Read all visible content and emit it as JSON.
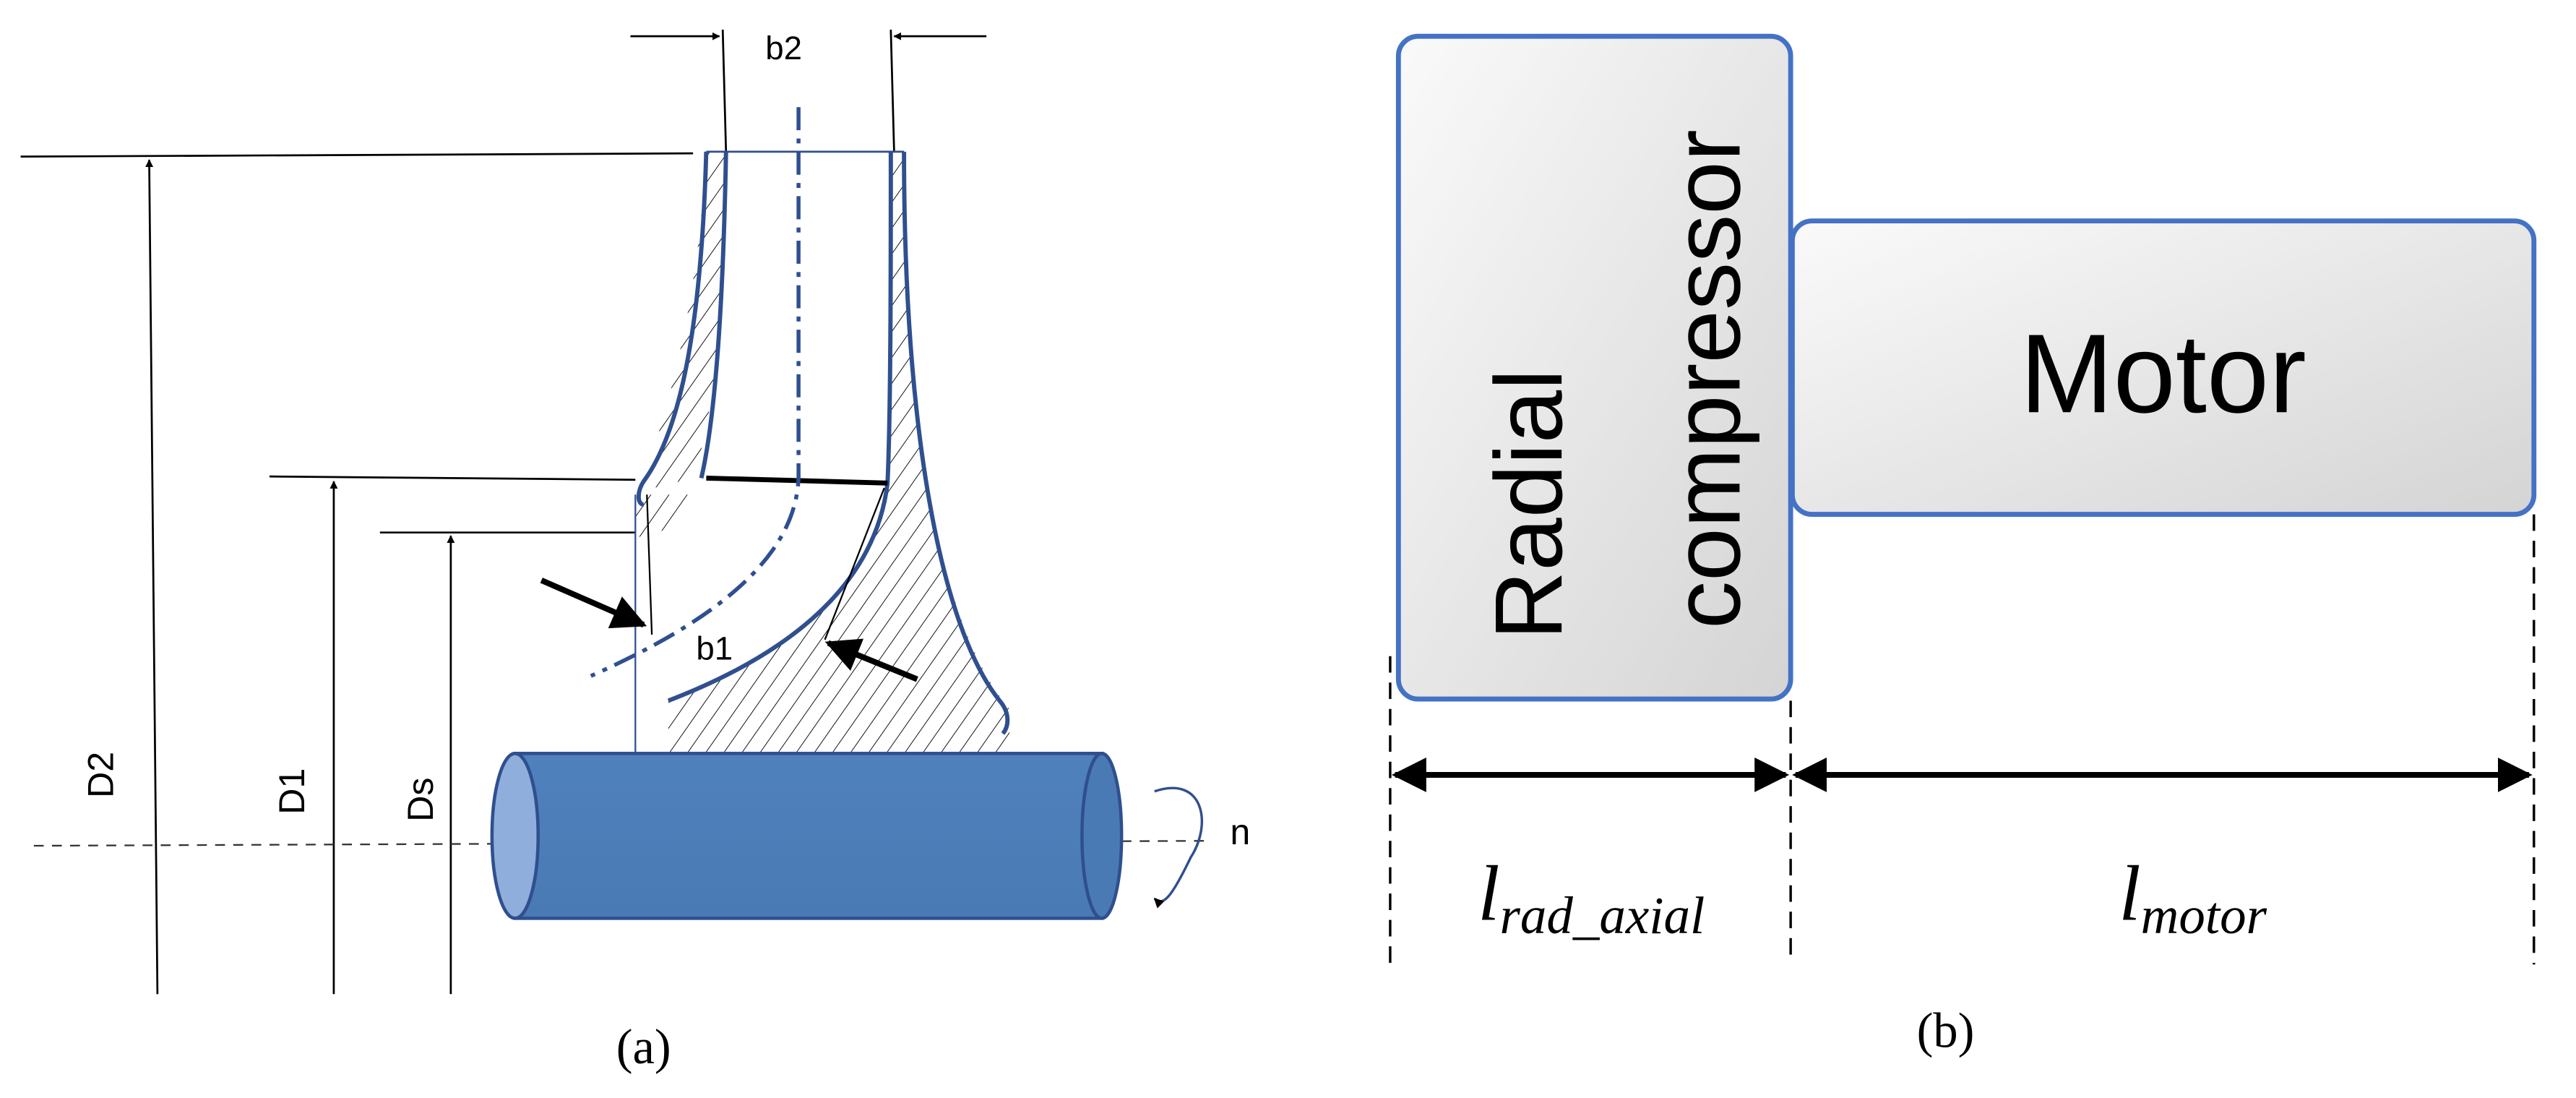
{
  "panel_a": {
    "labels": {
      "b2": "b2",
      "b1": "b1",
      "D2": "D2",
      "D1": "D1",
      "Ds": "Ds",
      "n": "n"
    },
    "caption": "(a)"
  },
  "panel_b": {
    "compressor": {
      "lines": [
        "Radial",
        "compressor"
      ]
    },
    "motor": "Motor",
    "length_compressor": {
      "base": "l",
      "subscript": "rad_axial"
    },
    "length_motor": {
      "base": "l",
      "subscript": "motor"
    },
    "caption": "(b)"
  }
}
